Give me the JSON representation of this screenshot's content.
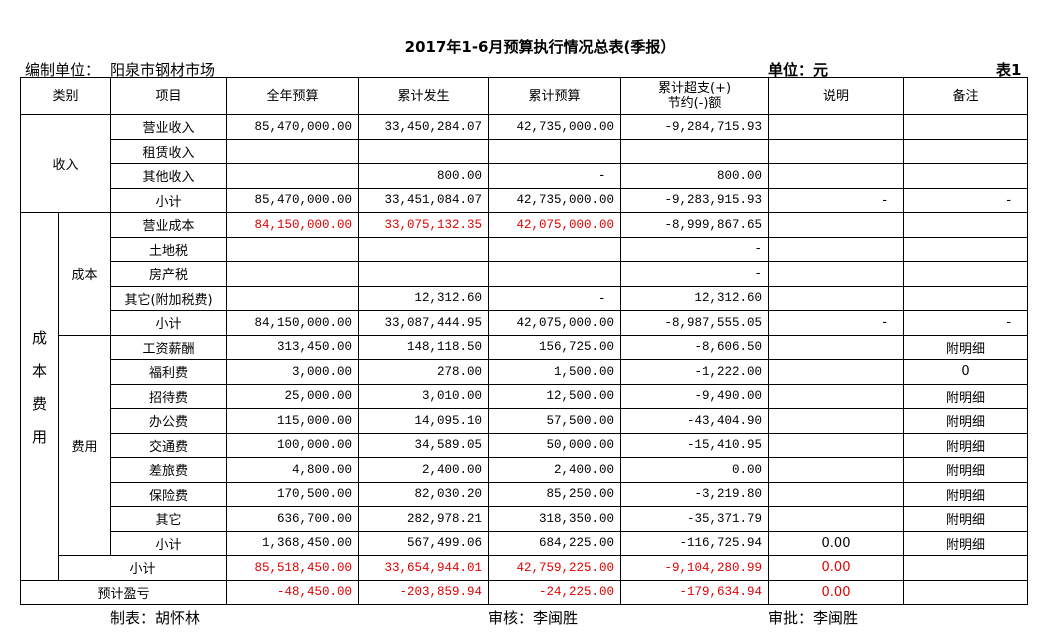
{
  "header": {
    "title": "2017年1-6月预算执行情况总表(季报）",
    "org_label": "编制单位：",
    "org": "阳泉市钢材市场",
    "unit": "单位：元",
    "table_no": "表1"
  },
  "table": {
    "highlight_color": "#e00000",
    "columns": [
      "类别",
      "项目",
      "全年预算",
      "累计发生",
      "累计预算",
      "累计超支(+)\n节约(-)额",
      "说明",
      "备注"
    ],
    "income": {
      "label": "收入",
      "rows": [
        {
          "item": "营业收入",
          "values": [
            "85,470,000.00",
            "33,450,284.07",
            "42,735,000.00",
            "-9,284,715.93"
          ],
          "note": null,
          "remark": null
        },
        {
          "item": "租赁收入",
          "values": [
            null,
            null,
            null,
            null
          ],
          "note": null,
          "remark": null
        },
        {
          "item": "其他收入",
          "values": [
            null,
            "800.00",
            "-",
            "800.00"
          ],
          "note": null,
          "remark": null
        },
        {
          "item": "小计",
          "values": [
            "85,470,000.00",
            "33,451,084.07",
            "42,735,000.00",
            "-9,283,915.93"
          ],
          "note": "-",
          "remark": "-"
        }
      ]
    },
    "expense": {
      "label": "成本费用",
      "groups": [
        {
          "label": "成本",
          "rows": [
            {
              "item": "营业成本",
              "values": [
                "84,150,000.00",
                "33,075,132.35",
                "42,075,000.00",
                "-8,999,867.65"
              ],
              "note": null,
              "remark": null,
              "red_values": [
                0,
                1,
                2
              ]
            },
            {
              "item": "土地税",
              "values": [
                null,
                null,
                null,
                "-"
              ],
              "note": null,
              "remark": null
            },
            {
              "item": "房产税",
              "values": [
                null,
                null,
                null,
                "-"
              ],
              "note": null,
              "remark": null
            },
            {
              "item": "其它(附加税费)",
              "values": [
                null,
                "12,312.60",
                "-",
                "12,312.60"
              ],
              "note": null,
              "remark": null
            },
            {
              "item": "小计",
              "values": [
                "84,150,000.00",
                "33,087,444.95",
                "42,075,000.00",
                "-8,987,555.05"
              ],
              "note": "-",
              "remark": "-"
            }
          ]
        },
        {
          "label": "费用",
          "rows": [
            {
              "item": "工资薪酬",
              "values": [
                "313,450.00",
                "148,118.50",
                "156,725.00",
                "-8,606.50"
              ],
              "note": null,
              "remark": "附明细"
            },
            {
              "item": "福利费",
              "values": [
                "3,000.00",
                "278.00",
                "1,500.00",
                "-1,222.00"
              ],
              "note": null,
              "remark": "0"
            },
            {
              "item": "招待费",
              "values": [
                "25,000.00",
                "3,010.00",
                "12,500.00",
                "-9,490.00"
              ],
              "note": null,
              "remark": "附明细"
            },
            {
              "item": "办公费",
              "values": [
                "115,000.00",
                "14,095.10",
                "57,500.00",
                "-43,404.90"
              ],
              "note": null,
              "remark": "附明细"
            },
            {
              "item": "交通费",
              "values": [
                "100,000.00",
                "34,589.05",
                "50,000.00",
                "-15,410.95"
              ],
              "note": null,
              "remark": "附明细"
            },
            {
              "item": "差旅费",
              "values": [
                "4,800.00",
                "2,400.00",
                "2,400.00",
                "0.00"
              ],
              "note": null,
              "remark": "附明细"
            },
            {
              "item": "保险费",
              "values": [
                "170,500.00",
                "82,030.20",
                "85,250.00",
                "-3,219.80"
              ],
              "note": null,
              "remark": "附明细"
            },
            {
              "item": "其它",
              "values": [
                "636,700.00",
                "282,978.21",
                "318,350.00",
                "-35,371.79"
              ],
              "note": null,
              "remark": "附明细"
            },
            {
              "item": "小计",
              "values": [
                "1,368,450.00",
                "567,499.06",
                "684,225.00",
                "-116,725.94"
              ],
              "note": "0.00",
              "remark": "附明细"
            }
          ]
        }
      ],
      "total": {
        "item": "小计",
        "values": [
          "85,518,450.00",
          "33,654,944.01",
          "42,759,225.00",
          "-9,104,280.99"
        ],
        "note": "0.00",
        "remark": null,
        "red_values": [
          0,
          1,
          2,
          3,
          4
        ]
      }
    },
    "profit": {
      "item": "预计盈亏",
      "values": [
        "-48,450.00",
        "-203,859.94",
        "-24,225.00",
        "-179,634.94"
      ],
      "note": "0.00",
      "remark": null,
      "red_values": [
        0,
        1,
        2,
        3,
        4
      ]
    }
  },
  "footer": {
    "prepared": "制表：胡怀林",
    "reviewed": "审核：李闽胜",
    "approved": "审批：李闽胜"
  }
}
